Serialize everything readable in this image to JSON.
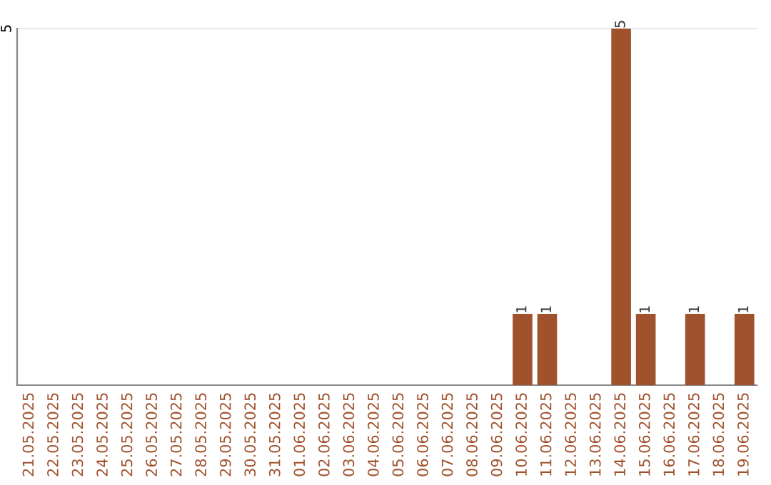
{
  "chart_data": {
    "type": "bar",
    "categories": [
      "21.05.2025",
      "22.05.2025",
      "23.05.2025",
      "24.05.2025",
      "25.05.2025",
      "26.05.2025",
      "27.05.2025",
      "28.05.2025",
      "29.05.2025",
      "30.05.2025",
      "31.05.2025",
      "01.06.2025",
      "02.06.2025",
      "03.06.2025",
      "04.06.2025",
      "05.06.2025",
      "06.06.2025",
      "07.06.2025",
      "08.06.2025",
      "09.06.2025",
      "10.06.2025",
      "11.06.2025",
      "12.06.2025",
      "13.06.2025",
      "14.06.2025",
      "15.06.2025",
      "16.06.2025",
      "17.06.2025",
      "18.06.2025",
      "19.06.2025"
    ],
    "values": [
      null,
      null,
      null,
      null,
      null,
      null,
      null,
      null,
      null,
      null,
      null,
      null,
      null,
      null,
      null,
      null,
      null,
      null,
      null,
      null,
      1,
      1,
      null,
      null,
      5,
      1,
      null,
      1,
      null,
      1
    ],
    "data_labels": true,
    "color": "#a0522d",
    "ylim": [
      0,
      5
    ],
    "ref_lines": [
      {
        "axis": "y",
        "value": 5,
        "label": "5",
        "color": "#cccccc"
      }
    ]
  }
}
